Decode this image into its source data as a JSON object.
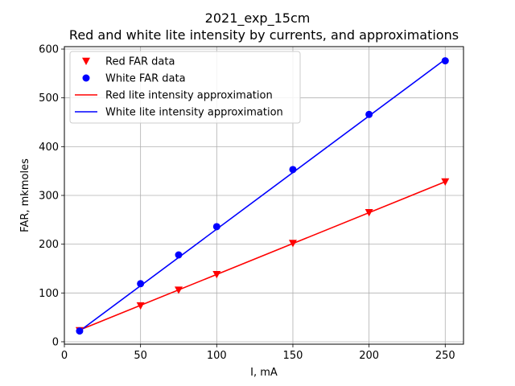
{
  "chart_data": {
    "type": "line",
    "title": "2021_exp_15cm",
    "subtitle": "Red and white lite intensity by currents, and approximations",
    "xlabel": "I, mA",
    "ylabel": "FAR, mkmoles",
    "xlim": [
      0,
      262
    ],
    "ylim": [
      -5,
      605
    ],
    "xticks": [
      0,
      50,
      100,
      150,
      200,
      250
    ],
    "yticks": [
      0,
      100,
      200,
      300,
      400,
      500,
      600
    ],
    "grid": true,
    "legend_position": "top-left",
    "series": [
      {
        "name": "Red FAR data",
        "kind": "scatter",
        "marker": "triangle-down",
        "color": "#ff0000",
        "x": [
          10,
          50,
          75,
          100,
          150,
          200,
          250
        ],
        "y": [
          23,
          74,
          106,
          138,
          202,
          265,
          328
        ]
      },
      {
        "name": "White FAR data",
        "kind": "scatter",
        "marker": "circle",
        "color": "#0000ff",
        "x": [
          10,
          50,
          75,
          100,
          150,
          200,
          250
        ],
        "y": [
          22,
          119,
          178,
          236,
          353,
          466,
          576
        ]
      },
      {
        "name": "Red lite intensity approximation",
        "kind": "line",
        "color": "#ff0000",
        "x": [
          10,
          250
        ],
        "y": [
          24,
          328
        ]
      },
      {
        "name": "White lite intensity approximation",
        "kind": "line",
        "color": "#0000ff",
        "x": [
          10,
          250
        ],
        "y": [
          22,
          579
        ]
      }
    ]
  }
}
